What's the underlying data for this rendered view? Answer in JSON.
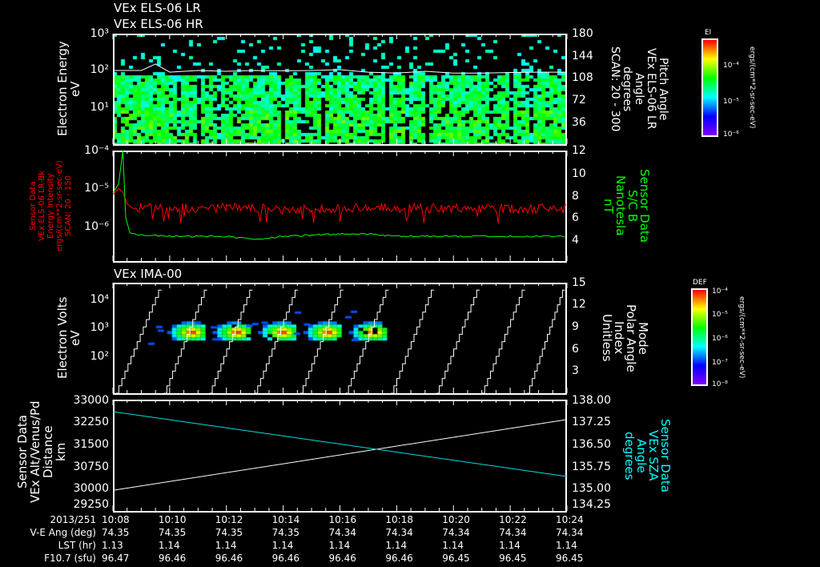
{
  "titles": {
    "p1a": "VEx ELS-06 LR",
    "p1b": "VEx ELS-06 HR",
    "p3": "VEx IMA-00"
  },
  "colors": {
    "red": "#ff0000",
    "green": "#00ff00",
    "cyan": "#00e0e0",
    "white": "#ffffff"
  },
  "labels": {
    "p1_left": [
      "Electron Energy",
      "eV"
    ],
    "p1_right": [
      "Pitch Angle",
      "VEx ELS-06 LR",
      "Angle",
      "degrees",
      "SCAN: 20 - 300"
    ],
    "p1_cb_title": "El",
    "p1_cb_unit": "ergs/(cm**2-sr-sec-eV)",
    "p2_left": [
      "Sensor Data",
      "VEx ELS-06 LR-Bk",
      "Energy Intensity",
      "ergs/(cm**2-sr-sec-eV)",
      "SCAN: 20 - 150"
    ],
    "p2_right": [
      "Sensor Data",
      "S/C B",
      "Nanotesla",
      "nT"
    ],
    "p3_left": [
      "Electron Volts",
      "eV"
    ],
    "p3_right": [
      "Mode",
      "Polar Angle",
      "Index",
      "Unitless"
    ],
    "p3_cb_title": "DEF",
    "p3_cb_unit": "ergs/(cm**2-sr-sec-eV)",
    "p4_left": [
      "Sensor Data",
      "VEx Alt/Venus/Pd",
      "Distance",
      "km"
    ],
    "p4_right": [
      "Sensor Data",
      "VEx SZA",
      "Angle",
      "degrees"
    ]
  },
  "ticks": {
    "p1_left": [
      "10³",
      "10²",
      "10¹"
    ],
    "p1_right": [
      "180",
      "144",
      "108",
      "72",
      "36"
    ],
    "p1_cb": [
      "10⁻⁴",
      "10⁻⁵",
      "10⁻⁶"
    ],
    "p2_left": [
      "10⁻⁴",
      "10⁻⁵",
      "10⁻⁶"
    ],
    "p2_right": [
      "12",
      "10",
      "8",
      "6",
      "4"
    ],
    "p3_left": [
      "10⁴",
      "10³",
      "10²"
    ],
    "p3_right": [
      "15",
      "12",
      "9",
      "6",
      "3"
    ],
    "p3_cb": [
      "10⁻⁴",
      "10⁻⁵",
      "10⁻⁶",
      "10⁻⁷",
      "10⁻⁸"
    ],
    "p4_left": [
      "33000",
      "32250",
      "31500",
      "30750",
      "30000",
      "29250"
    ],
    "p4_right": [
      "138.00",
      "137.25",
      "136.50",
      "135.75",
      "135.00",
      "134.25"
    ]
  },
  "footer": {
    "headers": [
      "2013/251",
      "V-E Ang (deg)",
      "LST (hr)",
      "F10.7 (sfu)"
    ],
    "times": [
      "10:08",
      "10:10",
      "10:12",
      "10:14",
      "10:16",
      "10:18",
      "10:20",
      "10:22",
      "10:24"
    ],
    "ve_ang": [
      "74.35",
      "74.35",
      "74.35",
      "74.35",
      "74.34",
      "74.34",
      "74.34",
      "74.34",
      "74.34"
    ],
    "lst": [
      "1.13",
      "1.14",
      "1.14",
      "1.14",
      "1.14",
      "1.14",
      "1.14",
      "1.14",
      "1.14"
    ],
    "f107": [
      "96.47",
      "96.46",
      "96.46",
      "96.46",
      "96.46",
      "96.46",
      "96.45",
      "96.45",
      "96.45"
    ]
  },
  "chart_data": [
    {
      "type": "heatmap",
      "title": "VEx ELS-06 LR / HR",
      "xrange_min": [
        8,
        24
      ],
      "ylabel": "Electron Energy (eV)",
      "ylim_log": [
        1,
        1000
      ],
      "y2label": "Pitch Angle (deg)",
      "y2lim": [
        0,
        180
      ],
      "colorbar": "El",
      "clim_log": [
        1e-06,
        0.001
      ],
      "overlay_line": {
        "color": "white",
        "x_min": [
          8,
          9,
          9.5,
          10,
          11,
          12,
          13,
          14,
          15,
          16,
          17,
          18,
          19,
          20,
          21,
          22,
          23,
          24
        ],
        "y_ev": [
          100,
          100,
          150,
          90,
          100,
          95,
          100,
          98,
          100,
          105,
          90,
          85,
          95,
          85,
          85,
          88,
          90,
          90
        ]
      }
    },
    {
      "type": "line",
      "xrange_min": [
        8,
        24
      ],
      "ylim_log": [
        1e-07,
        0.0001
      ],
      "y2lim": [
        2,
        12
      ],
      "series": [
        {
          "name": "ELS-06 LR-Bk Energy Intensity",
          "color": "red",
          "axis": "left",
          "x_min": [
            8,
            8.2,
            8.35,
            8.5,
            8.7,
            9,
            10,
            12,
            14,
            16,
            18,
            20,
            22,
            24
          ],
          "y": [
            7e-06,
            1e-05,
            8e-06,
            4e-06,
            3e-06,
            3.2e-06,
            3e-06,
            3.2e-06,
            2.8e-06,
            3e-06,
            3.1e-06,
            3e-06,
            3e-06,
            3e-06
          ]
        },
        {
          "name": "S/C B (nT)",
          "color": "green",
          "axis": "right",
          "x_min": [
            8,
            8.2,
            8.35,
            8.45,
            8.6,
            9,
            10,
            11,
            12,
            13,
            14,
            15,
            16,
            17,
            18,
            19,
            20,
            21,
            22,
            23,
            24
          ],
          "y": [
            8.2,
            9,
            12,
            6,
            4.6,
            4.4,
            4.3,
            4.3,
            4.3,
            4.0,
            4.3,
            4.4,
            4.5,
            4.5,
            4.3,
            4.3,
            4.3,
            4.3,
            4.3,
            4.3,
            4.3
          ]
        }
      ]
    },
    {
      "type": "heatmap",
      "title": "VEx IMA-00",
      "xrange_min": [
        8,
        24
      ],
      "ylabel": "Electron Volts (eV)",
      "ylim_log": [
        5,
        40000
      ],
      "y2label": "Mode Polar Angle Index",
      "y2lim": [
        0,
        15
      ],
      "colorbar": "DEF",
      "clim_log": [
        1e-08,
        0.0001
      ],
      "mode_cycle_starts_min": [
        8.1,
        9.5,
        11.1,
        12.7,
        14.3,
        15.9,
        17.5,
        19.1,
        20.7,
        22.3,
        23.9
      ],
      "blobs": [
        {
          "x_min": 10.7,
          "ev": 800
        },
        {
          "x_min": 12.3,
          "ev": 800
        },
        {
          "x_min": 13.9,
          "ev": 800
        },
        {
          "x_min": 15.5,
          "ev": 800
        },
        {
          "x_min": 17.1,
          "ev": 800
        }
      ]
    },
    {
      "type": "line",
      "xrange_min": [
        8,
        24
      ],
      "ylim": [
        29250,
        33000
      ],
      "y2lim": [
        134.25,
        138
      ],
      "series": [
        {
          "name": "VEx Alt/Venus/Pd Distance (km)",
          "color": "white",
          "axis": "left",
          "x_min": [
            8,
            24
          ],
          "y": [
            29950,
            32350
          ]
        },
        {
          "name": "VEx SZA Angle (deg)",
          "color": "cyan",
          "axis": "right",
          "x_min": [
            8,
            24
          ],
          "y": [
            137.62,
            135.42
          ]
        }
      ]
    }
  ]
}
